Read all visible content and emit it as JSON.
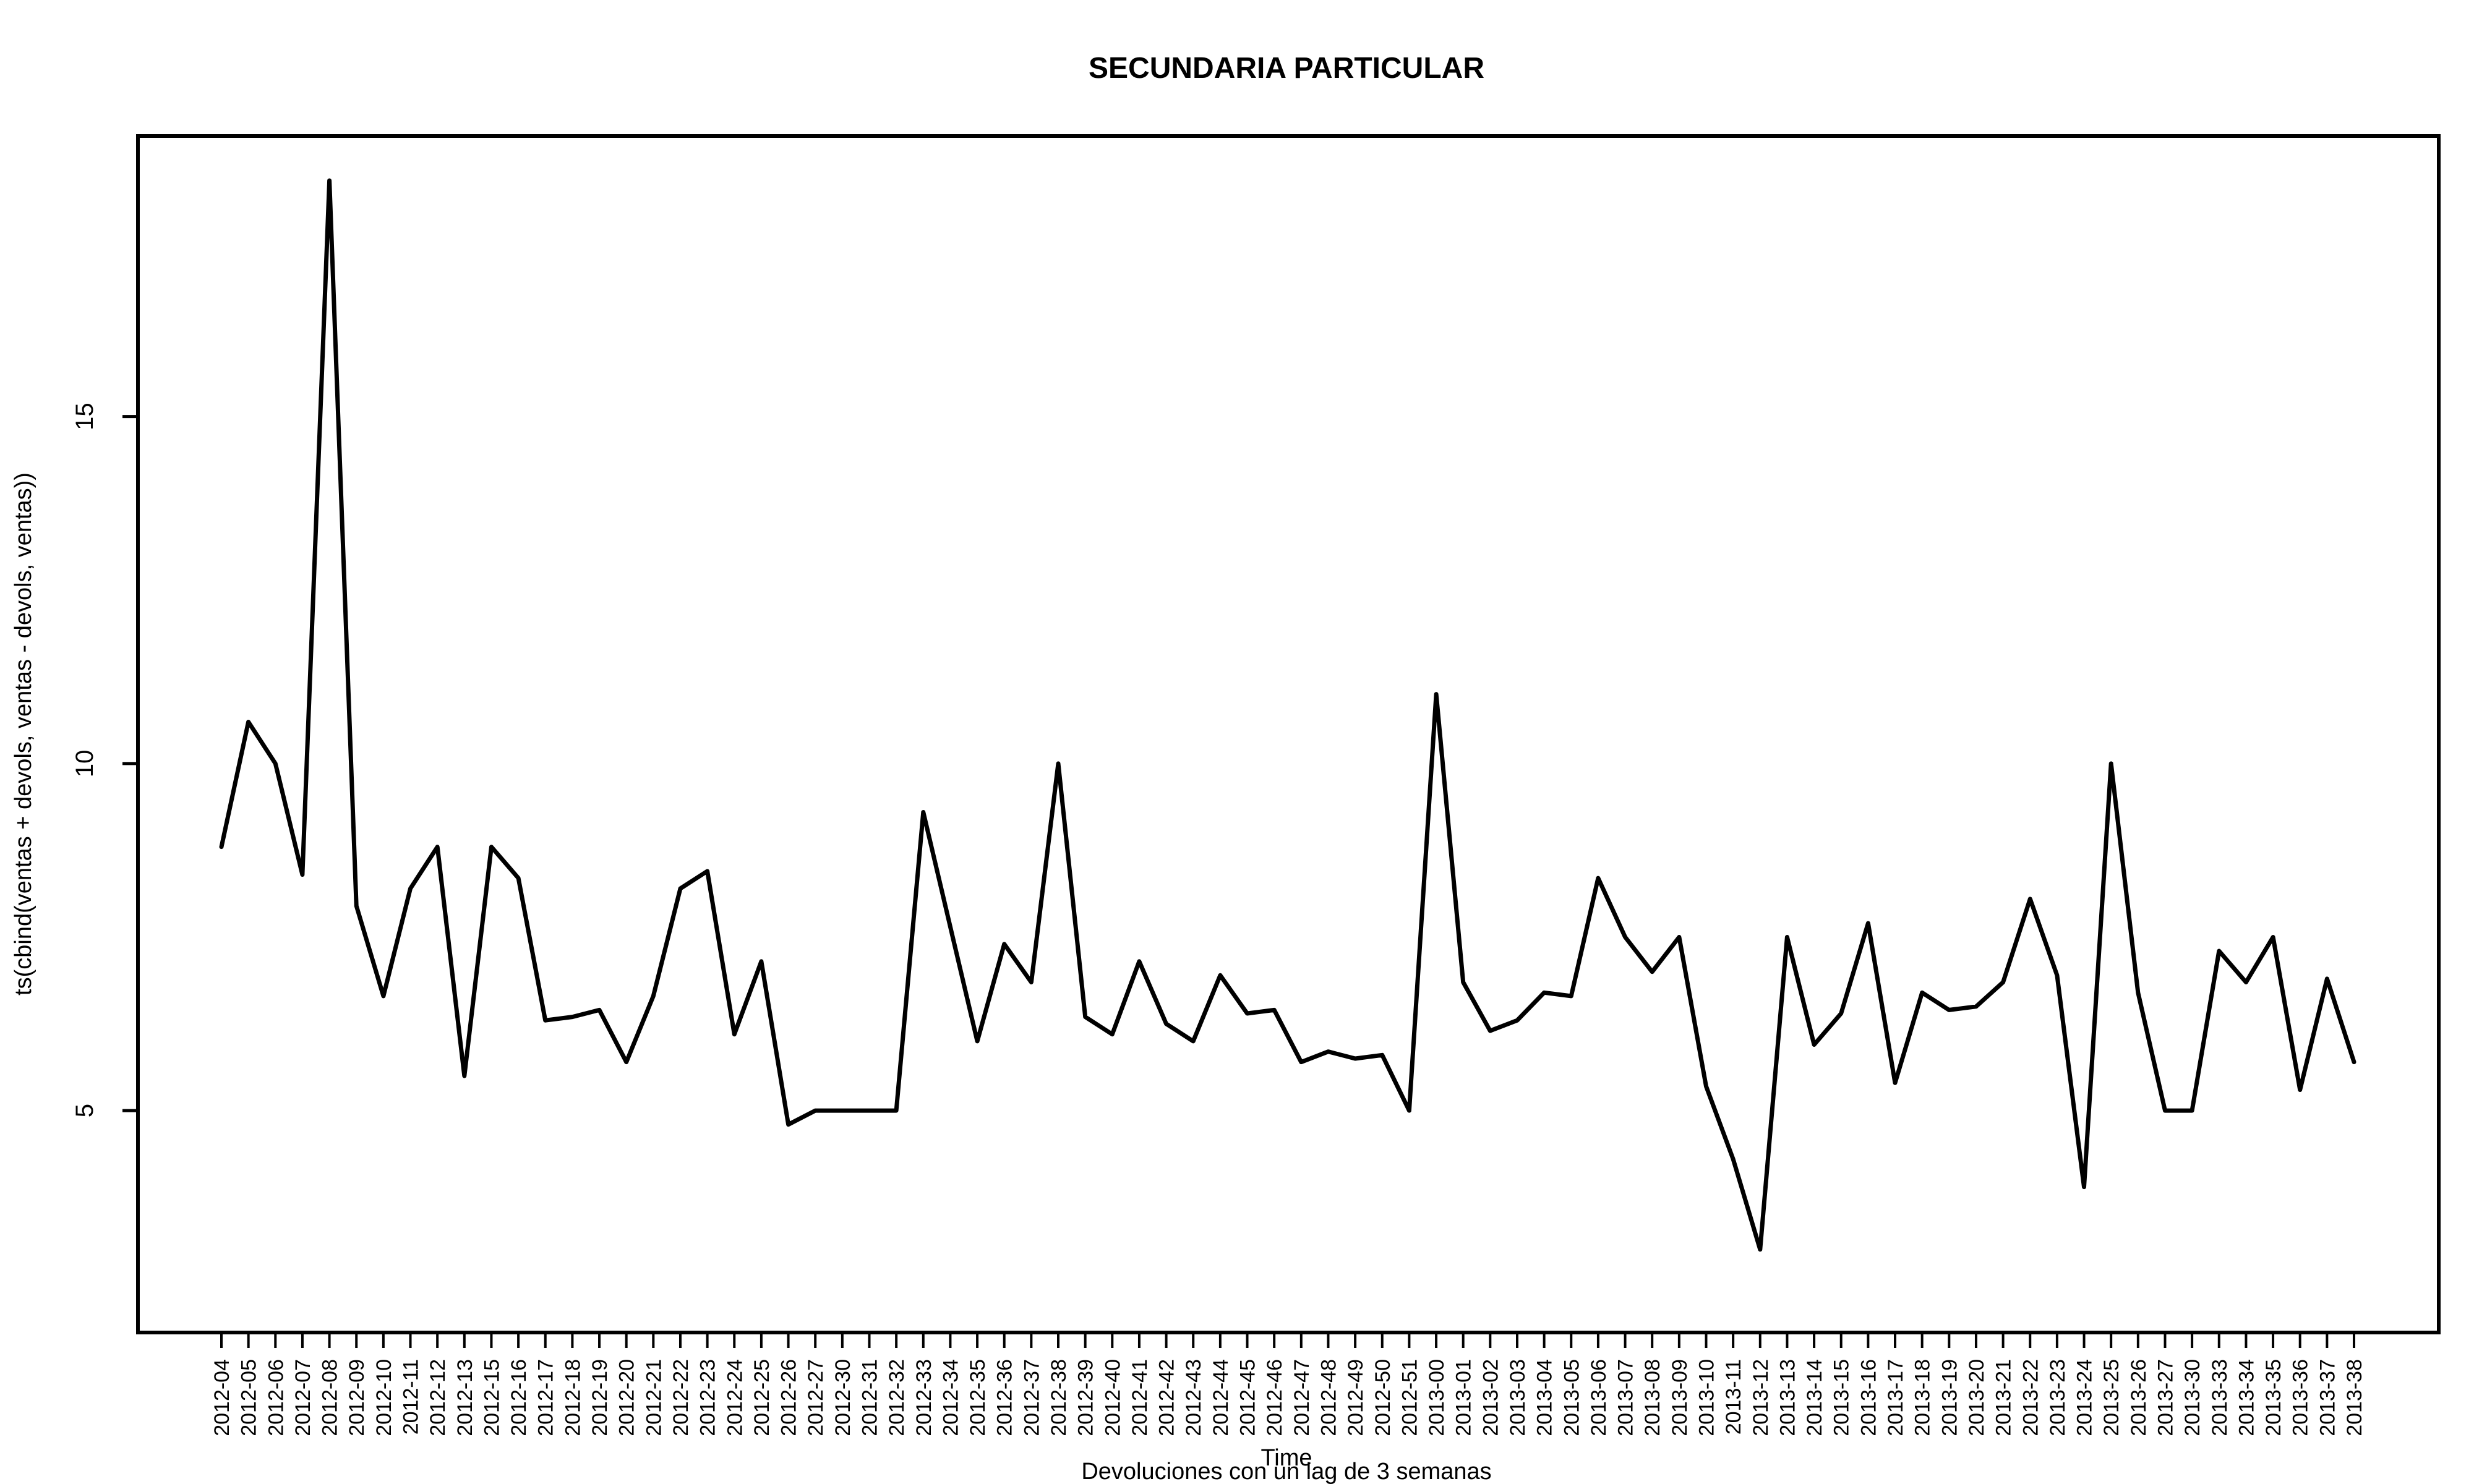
{
  "chart_data": {
    "type": "line",
    "title": "SECUNDARIA PARTICULAR",
    "xlabel": "Time",
    "ylabel": "ts(cbind(ventas + devols, ventas - devols, ventas))",
    "subtitle": "Devoluciones con un lag de 3 semanas",
    "categories": [
      "2012-04",
      "2012-05",
      "2012-06",
      "2012-07",
      "2012-08",
      "2012-09",
      "2012-10",
      "2012-11",
      "2012-12",
      "2012-13",
      "2012-15",
      "2012-16",
      "2012-17",
      "2012-18",
      "2012-19",
      "2012-20",
      "2012-21",
      "2012-22",
      "2012-23",
      "2012-24",
      "2012-25",
      "2012-26",
      "2012-27",
      "2012-30",
      "2012-31",
      "2012-32",
      "2012-33",
      "2012-34",
      "2012-35",
      "2012-36",
      "2012-37",
      "2012-38",
      "2012-39",
      "2012-40",
      "2012-41",
      "2012-42",
      "2012-43",
      "2012-44",
      "2012-45",
      "2012-46",
      "2012-47",
      "2012-48",
      "2012-49",
      "2012-50",
      "2012-51",
      "2013-00",
      "2013-01",
      "2013-02",
      "2013-03",
      "2013-04",
      "2013-05",
      "2013-06",
      "2013-07",
      "2013-08",
      "2013-09",
      "2013-10",
      "2013-11",
      "2013-12",
      "2013-13",
      "2013-14",
      "2013-15",
      "2013-16",
      "2013-17",
      "2013-18",
      "2013-19",
      "2013-20",
      "2013-21",
      "2013-22",
      "2013-23",
      "2013-24",
      "2013-25",
      "2013-26",
      "2013-27",
      "2013-30",
      "2013-33",
      "2013-34",
      "2013-35",
      "2013-36",
      "2013-37",
      "2013-38"
    ],
    "series": [
      {
        "values": [
          8.8,
          10.6,
          10,
          8.4,
          18.4,
          7.95,
          6.65,
          8.2,
          8.8,
          5.5,
          8.8,
          8.35,
          6.3,
          6.35,
          6.45,
          5.7,
          6.65,
          8.2,
          8.45,
          6.1,
          7.15,
          4.8,
          5,
          5,
          5,
          5,
          9.3,
          7.65,
          6,
          7.4,
          6.85,
          10,
          6.35,
          6.1,
          7.15,
          6.25,
          6,
          6.95,
          6.4,
          6.45,
          5.7,
          5.85,
          5.75,
          5.8,
          5,
          11,
          6.85,
          6.15,
          6.3,
          6.7,
          6.65,
          8.35,
          7.5,
          7,
          7.5,
          5.35,
          4.3,
          3,
          7.5,
          5.95,
          6.4,
          7.7,
          5.4,
          6.7,
          6.45,
          6.5,
          6.85,
          8.05,
          6.95,
          3.9,
          10,
          6.7,
          5,
          5,
          7.3,
          6.85,
          7.5,
          5.3,
          6.9,
          5.7
        ]
      }
    ],
    "ylim": [
      2.4,
      18.4
    ],
    "yticks": [
      5,
      10,
      15
    ],
    "grid": false,
    "legend": "none",
    "line_color": "#000000"
  }
}
